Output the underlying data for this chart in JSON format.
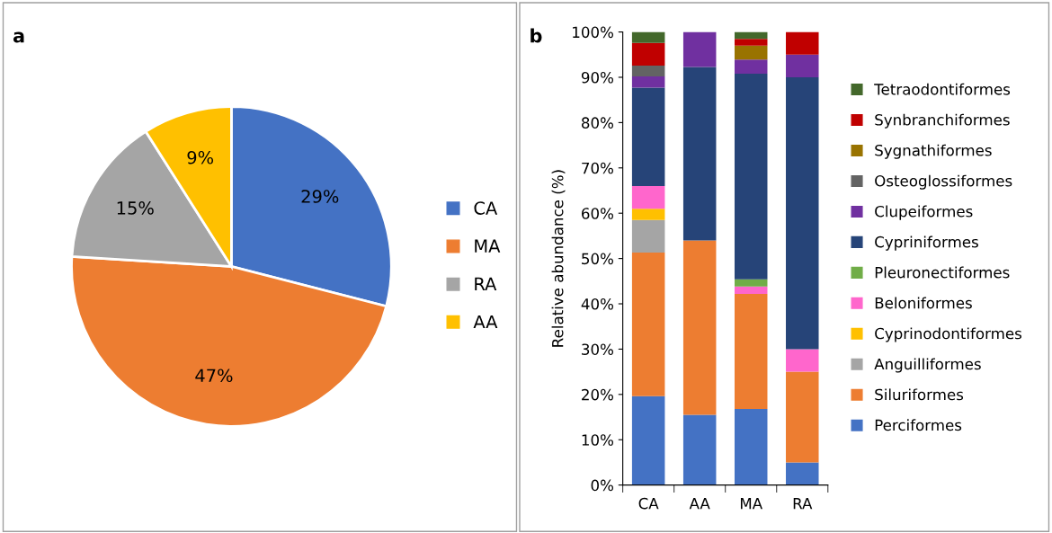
{
  "chart_data": [
    {
      "type": "pie",
      "title": "a",
      "categories": [
        "CA",
        "MA",
        "RA",
        "AA"
      ],
      "values": [
        29,
        47,
        15,
        9
      ],
      "value_labels": [
        "29%",
        "47%",
        "15%",
        "9%"
      ],
      "colors": [
        "#4472c4",
        "#ed7d31",
        "#a5a5a5",
        "#ffc000"
      ],
      "legend": "right"
    },
    {
      "type": "bar",
      "title": "b",
      "ylabel": "Relative abundance (%)",
      "categories": [
        "CA",
        "AA",
        "MA",
        "RA"
      ],
      "stacked": true,
      "legend": "right",
      "grid": false,
      "ylim": [
        0,
        100
      ],
      "yticks": [
        {
          "value": 0,
          "label": "0%"
        },
        {
          "value": 10,
          "label": "10%"
        },
        {
          "value": 20,
          "label": "20%"
        },
        {
          "value": 30,
          "label": "30%"
        },
        {
          "value": 40,
          "label": "40%"
        },
        {
          "value": 50,
          "label": "50%"
        },
        {
          "value": 60,
          "label": "60%"
        },
        {
          "value": 70,
          "label": "70%"
        },
        {
          "value": 80,
          "label": "80%"
        },
        {
          "value": 90,
          "label": "90%"
        },
        {
          "value": 100,
          "label": "100%"
        }
      ],
      "series": [
        {
          "name": "Perciformes",
          "color": "#4472c4",
          "values": [
            19.6,
            15.5,
            16.8,
            5
          ]
        },
        {
          "name": "Siluriformes",
          "color": "#ed7d31",
          "values": [
            31.7,
            38.5,
            25.4,
            20
          ]
        },
        {
          "name": "Anguilliformes",
          "color": "#a5a5a5",
          "values": [
            7.2,
            0,
            0,
            0
          ]
        },
        {
          "name": "Cyprinodontiformes",
          "color": "#ffc000",
          "values": [
            2.5,
            0,
            0,
            0
          ]
        },
        {
          "name": "Beloniformes",
          "color": "#ff66cc",
          "values": [
            5,
            0,
            1.6,
            5
          ]
        },
        {
          "name": "Pleuronectiformes",
          "color": "#70ad47",
          "values": [
            0,
            0,
            1.6,
            0
          ]
        },
        {
          "name": "Cypriniformes",
          "color": "#264478",
          "values": [
            21.7,
            38.3,
            45.4,
            60
          ]
        },
        {
          "name": "Clupeiformes",
          "color": "#7030a0",
          "values": [
            2.5,
            7.7,
            3.1,
            5
          ]
        },
        {
          "name": "Osteoglossiformes",
          "color": "#636363",
          "values": [
            2.4,
            0,
            0,
            0
          ]
        },
        {
          "name": "Sygnathiformes",
          "color": "#997300",
          "values": [
            0,
            0,
            3.1,
            0
          ]
        },
        {
          "name": "Synbranchiformes",
          "color": "#c00000",
          "values": [
            5,
            0,
            1.5,
            5
          ]
        },
        {
          "name": "Tetraodontiformes",
          "color": "#43682b",
          "values": [
            2.4,
            0,
            1.5,
            0
          ]
        }
      ]
    }
  ]
}
